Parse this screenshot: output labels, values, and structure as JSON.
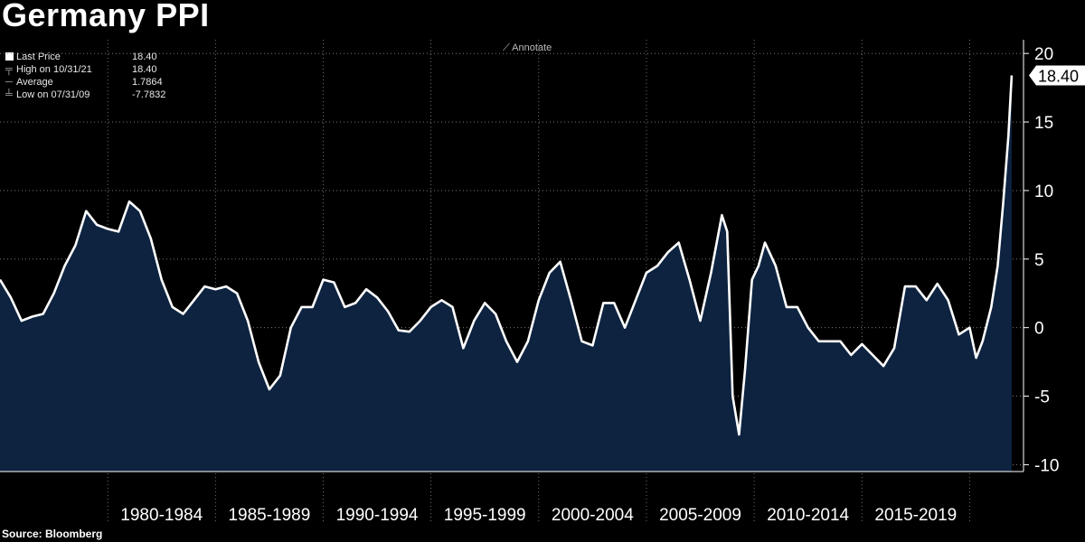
{
  "chart_data": {
    "type": "area",
    "title": "Germany PPI",
    "source": "Source: Bloomberg",
    "annotate_label": "Annotate",
    "last_value_label": "18.40",
    "legend": [
      {
        "label": "Last Price",
        "value": "18.40"
      },
      {
        "label": "High on 10/31/21",
        "value": "18.40"
      },
      {
        "label": "Average",
        "value": "1.7864"
      },
      {
        "label": "Low on 07/31/09",
        "value": "-7.7832"
      }
    ],
    "x_tick_labels": [
      "1980-1984",
      "1985-1989",
      "1990-1994",
      "1995-1999",
      "2000-2004",
      "2005-2009",
      "2010-2014",
      "2015-2019"
    ],
    "y_ticks": [
      20,
      15,
      10,
      5,
      0,
      -5,
      -10
    ],
    "ylim": [
      -10.5,
      21
    ],
    "xlim": [
      1975.0,
      2022.5
    ],
    "colors": {
      "line": "#ffffff",
      "fill": "#0d2340",
      "grid": "#8a8a8a"
    },
    "grid": true,
    "series": [
      {
        "x": [
          1975.0,
          1975.5,
          1976.0,
          1976.5,
          1977.0,
          1977.5,
          1978.0,
          1978.5,
          1979.0,
          1979.5,
          1980.0,
          1980.5,
          1981.0,
          1981.5,
          1982.0,
          1982.5,
          1983.0,
          1983.5,
          1984.0,
          1984.5,
          1985.0,
          1985.5,
          1986.0,
          1986.5,
          1987.0,
          1987.5,
          1988.0,
          1988.5,
          1989.0,
          1989.5,
          1990.0,
          1990.5,
          1991.0,
          1991.5,
          1992.0,
          1992.5,
          1993.0,
          1993.5,
          1994.0,
          1994.5,
          1995.0,
          1995.5,
          1996.0,
          1996.5,
          1997.0,
          1997.5,
          1998.0,
          1998.5,
          1999.0,
          1999.5,
          2000.0,
          2000.5,
          2001.0,
          2001.5,
          2002.0,
          2002.5,
          2003.0,
          2003.5,
          2004.0,
          2004.5,
          2005.0,
          2005.5,
          2006.0,
          2006.5,
          2007.0,
          2007.5,
          2008.0,
          2008.5,
          2008.75,
          2009.0,
          2009.3,
          2009.58,
          2009.9,
          2010.2,
          2010.5,
          2011.0,
          2011.5,
          2012.0,
          2012.5,
          2013.0,
          2013.5,
          2014.0,
          2014.5,
          2015.0,
          2015.5,
          2016.0,
          2016.5,
          2017.0,
          2017.5,
          2018.0,
          2018.5,
          2019.0,
          2019.5,
          2020.0,
          2020.3,
          2020.6,
          2021.0,
          2021.3,
          2021.55,
          2021.8,
          2021.95
        ],
        "values": [
          3.5,
          2.2,
          0.5,
          0.8,
          1.0,
          2.5,
          4.5,
          6.0,
          8.5,
          7.5,
          7.2,
          7.0,
          9.2,
          8.5,
          6.5,
          3.5,
          1.5,
          1.0,
          2.0,
          3.0,
          2.8,
          3.0,
          2.5,
          0.5,
          -2.5,
          -4.5,
          -3.5,
          0.0,
          1.5,
          1.5,
          3.5,
          3.3,
          1.5,
          1.8,
          2.8,
          2.2,
          1.2,
          -0.2,
          -0.3,
          0.5,
          1.5,
          2.0,
          1.5,
          -1.5,
          0.5,
          1.8,
          1.0,
          -1.0,
          -2.5,
          -1.0,
          2.0,
          4.0,
          4.8,
          2.0,
          -1.0,
          -1.3,
          1.8,
          1.8,
          0.0,
          2.0,
          4.0,
          4.5,
          5.5,
          6.2,
          3.5,
          0.5,
          4.0,
          8.2,
          7.0,
          -5.0,
          -7.8,
          -3.0,
          3.5,
          4.5,
          6.2,
          4.5,
          1.5,
          1.5,
          0.0,
          -1.0,
          -1.0,
          -1.0,
          -2.0,
          -1.2,
          -2.0,
          -2.8,
          -1.5,
          3.0,
          3.0,
          2.0,
          3.2,
          2.0,
          -0.5,
          0.0,
          -2.2,
          -1.0,
          1.5,
          4.5,
          9.0,
          14.0,
          18.4
        ]
      }
    ]
  }
}
